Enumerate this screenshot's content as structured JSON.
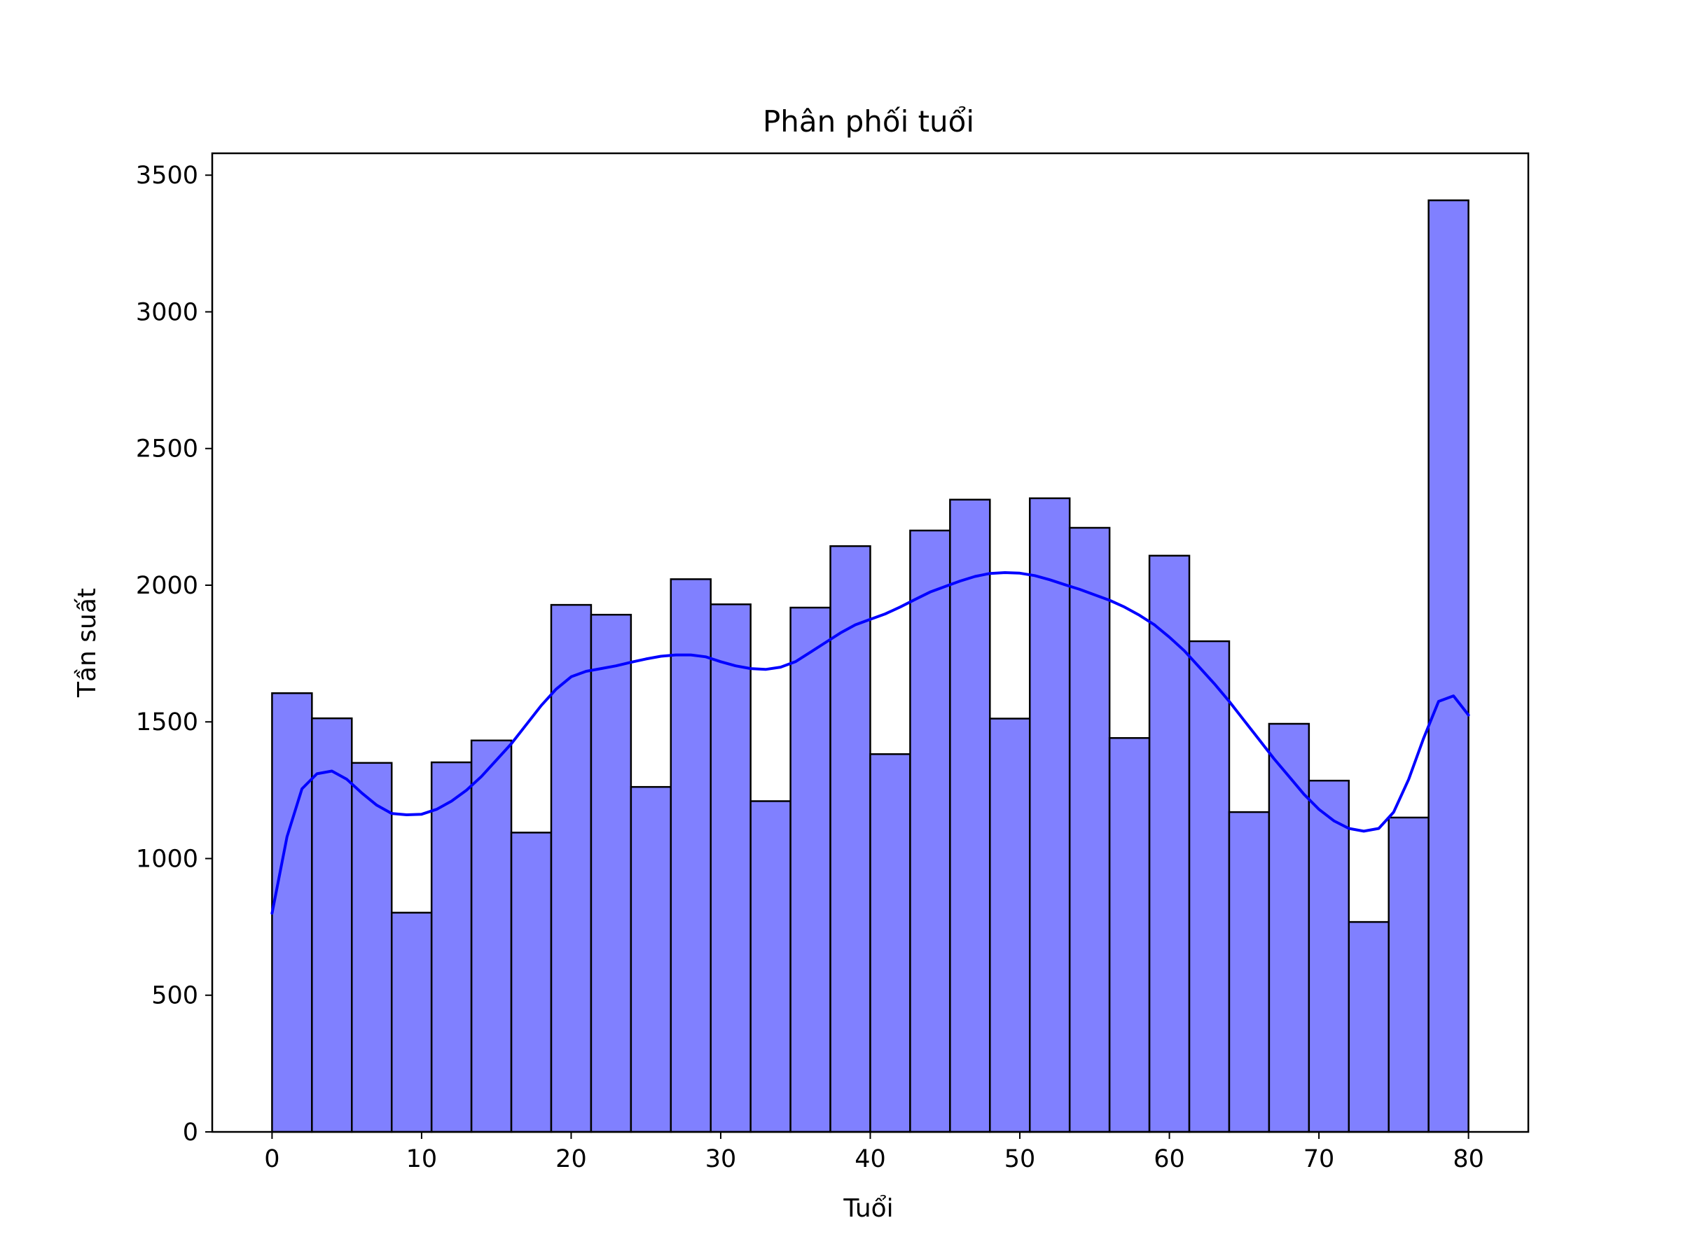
{
  "chart_data": {
    "type": "bar",
    "title": "Phân phối tuổi",
    "xlabel": "Tuổi",
    "ylabel": "Tần suất",
    "xlim": [
      -4,
      84
    ],
    "ylim": [
      0,
      3580
    ],
    "xticks": [
      0,
      10,
      20,
      30,
      40,
      50,
      60,
      70,
      80
    ],
    "yticks": [
      0,
      500,
      1000,
      1500,
      2000,
      2500,
      3000,
      3500
    ],
    "bin_start": 0,
    "bin_end": 80,
    "bar_color": "#8080ff",
    "bar_edge_color": "#000000",
    "kde_color": "#0000ff",
    "values": [
      1605,
      1513,
      1350,
      802,
      1352,
      1432,
      1095,
      1928,
      1892,
      1262,
      2022,
      1930,
      1210,
      1918,
      2143,
      1382,
      2200,
      2313,
      1512,
      2318,
      2210,
      1441,
      2108,
      1795,
      1170,
      1493,
      1285,
      768,
      1150,
      3408
    ],
    "kde": {
      "x": [
        0,
        1,
        2,
        3,
        4,
        5,
        6,
        7,
        8,
        9,
        10,
        11,
        12,
        13,
        14,
        15,
        16,
        17,
        18,
        19,
        20,
        21,
        22,
        23,
        24,
        25,
        26,
        27,
        28,
        29,
        30,
        31,
        32,
        33,
        34,
        35,
        36,
        37,
        38,
        39,
        40,
        41,
        42,
        43,
        44,
        45,
        46,
        47,
        48,
        49,
        50,
        51,
        52,
        53,
        54,
        55,
        56,
        57,
        58,
        59,
        60,
        61,
        62,
        63,
        64,
        65,
        66,
        67,
        68,
        69,
        70,
        71,
        72,
        73,
        74,
        75,
        76,
        77,
        78,
        79,
        80
      ],
      "y": [
        800,
        1080,
        1255,
        1310,
        1320,
        1290,
        1240,
        1195,
        1165,
        1160,
        1162,
        1180,
        1210,
        1250,
        1300,
        1360,
        1420,
        1490,
        1560,
        1620,
        1665,
        1685,
        1695,
        1705,
        1718,
        1730,
        1740,
        1745,
        1745,
        1738,
        1720,
        1705,
        1695,
        1692,
        1700,
        1720,
        1755,
        1790,
        1825,
        1855,
        1875,
        1895,
        1920,
        1948,
        1975,
        1995,
        2015,
        2032,
        2043,
        2046,
        2044,
        2035,
        2020,
        2002,
        1985,
        1965,
        1945,
        1920,
        1890,
        1855,
        1810,
        1760,
        1700,
        1640,
        1575,
        1505,
        1435,
        1365,
        1300,
        1235,
        1180,
        1138,
        1110,
        1100,
        1110,
        1170,
        1290,
        1440,
        1575,
        1595,
        1525
      ]
    }
  }
}
